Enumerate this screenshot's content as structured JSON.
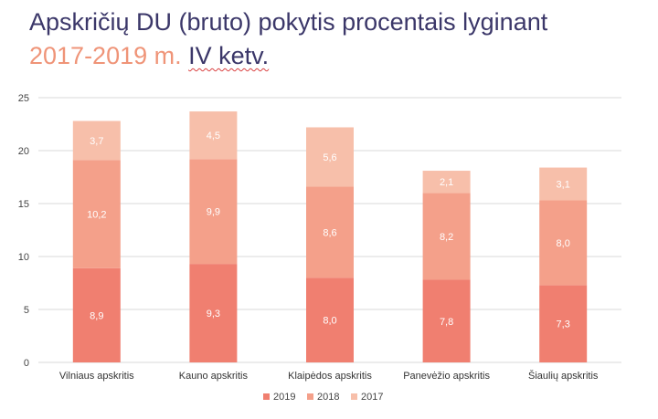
{
  "title": {
    "part1": "Apskričių DU (bruto) pokytis procentais lyginant",
    "part2_accent": "2017-2019 m.",
    "part3": "IV ketv."
  },
  "colors": {
    "title": "#3b3769",
    "title_accent": "#ef9478",
    "series_2019": "#f07f70",
    "series_2018": "#f4a08a",
    "series_2017": "#f7bfaa",
    "gridline": "#d9d9d9"
  },
  "chart_data": {
    "type": "bar",
    "stacked": true,
    "categories": [
      "Vilniaus apskritis",
      "Kauno apskritis",
      "Klaipėdos apskritis",
      "Panevėžio apskritis",
      "Šiaulių apskritis"
    ],
    "series": [
      {
        "name": "2019",
        "values": [
          8.9,
          9.3,
          8.0,
          7.8,
          7.3
        ],
        "labels": [
          "8,9",
          "9,3",
          "8,0",
          "7,8",
          "7,3"
        ]
      },
      {
        "name": "2018",
        "values": [
          10.2,
          9.9,
          8.6,
          8.2,
          8.0
        ],
        "labels": [
          "10,2",
          "9,9",
          "8,6",
          "8,2",
          "8,0"
        ]
      },
      {
        "name": "2017",
        "values": [
          3.7,
          4.5,
          5.6,
          2.1,
          3.1
        ],
        "labels": [
          "3,7",
          "4,5",
          "5,6",
          "2,1",
          "3,1"
        ]
      }
    ],
    "ylim": [
      0,
      25
    ],
    "yticks": [
      0,
      5,
      10,
      15,
      20,
      25
    ],
    "grid": true,
    "legend_position": "bottom",
    "xlabel": "",
    "ylabel": ""
  }
}
